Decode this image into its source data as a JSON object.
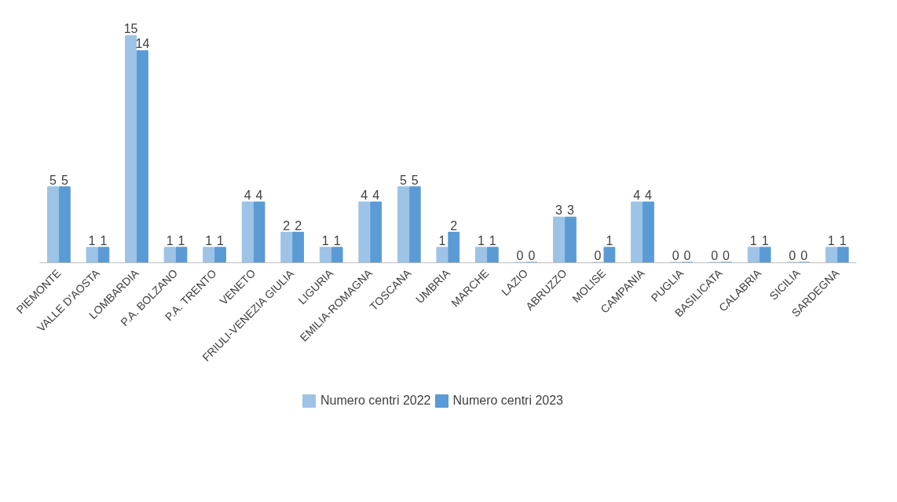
{
  "chart_data": {
    "type": "bar",
    "categories": [
      "PIEMONTE",
      "VALLE D'AOSTA",
      "LOMBARDIA",
      "P.A. BOLZANO",
      "P.A. TRENTO",
      "VENETO",
      "FRIULI-VENEZIA GIULIA",
      "LIGURIA",
      "EMILIA-ROMAGNA",
      "TOSCANA",
      "UMBRIA",
      "MARCHE",
      "LAZIO",
      "ABRUZZO",
      "MOLISE",
      "CAMPANIA",
      "PUGLIA",
      "BASILICATA",
      "CALABRIA",
      "SICILIA",
      "SARDEGNA"
    ],
    "series": [
      {
        "name": "Numero centri 2022",
        "color": "#9dc3e6",
        "values": [
          5,
          1,
          15,
          1,
          1,
          4,
          2,
          1,
          4,
          5,
          1,
          1,
          0,
          3,
          0,
          4,
          0,
          0,
          1,
          0,
          1
        ]
      },
      {
        "name": "Numero centri 2023",
        "color": "#5b9bd5",
        "values": [
          5,
          1,
          14,
          1,
          1,
          4,
          2,
          1,
          4,
          5,
          2,
          1,
          0,
          3,
          1,
          4,
          0,
          0,
          1,
          0,
          1
        ]
      }
    ],
    "data_labels": true,
    "grid": false,
    "legend": "bottom"
  }
}
